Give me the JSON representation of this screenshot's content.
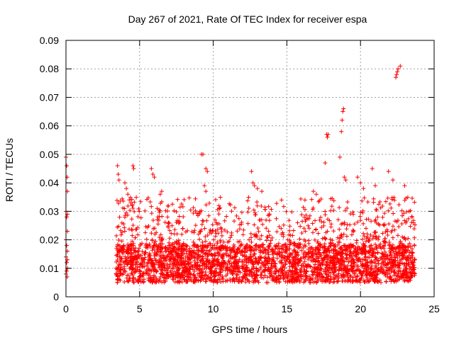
{
  "chart_data": {
    "type": "scatter",
    "title": "Day 267 of 2021, Rate Of TEC Index for receiver espa",
    "xlabel": "GPS time / hours",
    "ylabel": "ROTI / TECUs",
    "xlim": [
      0,
      25
    ],
    "ylim": [
      0,
      0.09
    ],
    "x_ticks": [
      "0",
      "5",
      "10",
      "15",
      "20",
      "25"
    ],
    "y_ticks": [
      "0",
      "0.01",
      "0.02",
      "0.03",
      "0.04",
      "0.05",
      "0.06",
      "0.07",
      "0.08",
      "0.09"
    ],
    "grid": true,
    "marker": "plus",
    "series": [
      {
        "name": "ROTI",
        "color": "#ff0000",
        "points": [
          [
            0.0,
            0.049
          ],
          [
            0.05,
            0.046
          ],
          [
            0.08,
            0.042
          ],
          [
            0.1,
            0.037
          ],
          [
            0.0,
            0.03
          ],
          [
            0.1,
            0.029
          ],
          [
            0.05,
            0.028
          ],
          [
            0.1,
            0.023
          ],
          [
            0.0,
            0.02
          ],
          [
            0.05,
            0.018
          ],
          [
            0.1,
            0.016
          ],
          [
            0.0,
            0.014
          ],
          [
            0.05,
            0.012
          ],
          [
            0.1,
            0.01
          ],
          [
            0.0,
            0.008
          ],
          [
            0.08,
            0.007
          ],
          [
            0.1,
            0.013
          ],
          [
            0.05,
            0.009
          ],
          [
            3.5,
            0.046
          ],
          [
            3.55,
            0.043
          ],
          [
            3.6,
            0.041
          ],
          [
            4.0,
            0.04
          ],
          [
            4.1,
            0.038
          ],
          [
            4.2,
            0.036
          ],
          [
            4.3,
            0.034
          ],
          [
            4.4,
            0.033
          ],
          [
            4.5,
            0.032
          ],
          [
            4.55,
            0.046
          ],
          [
            4.6,
            0.045
          ],
          [
            5.8,
            0.045
          ],
          [
            5.9,
            0.043
          ],
          [
            6.0,
            0.042
          ],
          [
            6.4,
            0.036
          ],
          [
            6.5,
            0.037
          ],
          [
            9.2,
            0.05
          ],
          [
            9.3,
            0.05
          ],
          [
            9.5,
            0.045
          ],
          [
            9.6,
            0.044
          ],
          [
            9.4,
            0.039
          ],
          [
            9.5,
            0.037
          ],
          [
            12.6,
            0.044
          ],
          [
            12.7,
            0.04
          ],
          [
            12.8,
            0.039
          ],
          [
            13.0,
            0.038
          ],
          [
            13.3,
            0.037
          ],
          [
            16.8,
            0.037
          ],
          [
            17.0,
            0.036
          ],
          [
            17.6,
            0.047
          ],
          [
            17.7,
            0.057
          ],
          [
            17.8,
            0.057
          ],
          [
            17.75,
            0.056
          ],
          [
            18.6,
            0.049
          ],
          [
            18.7,
            0.058
          ],
          [
            18.75,
            0.062
          ],
          [
            18.8,
            0.065
          ],
          [
            18.85,
            0.066
          ],
          [
            18.9,
            0.042
          ],
          [
            19.0,
            0.041
          ],
          [
            19.8,
            0.042
          ],
          [
            20.0,
            0.04
          ],
          [
            20.2,
            0.038
          ],
          [
            20.8,
            0.045
          ],
          [
            21.0,
            0.039
          ],
          [
            21.9,
            0.044
          ],
          [
            22.2,
            0.041
          ],
          [
            22.4,
            0.077
          ],
          [
            22.45,
            0.078
          ],
          [
            22.5,
            0.079
          ],
          [
            22.55,
            0.08
          ],
          [
            22.7,
            0.081
          ],
          [
            23.0,
            0.039
          ],
          [
            23.3,
            0.03
          ],
          [
            23.5,
            0.028
          ],
          [
            23.6,
            0.026
          ]
        ],
        "dense_band": {
          "x_range": [
            3.4,
            23.7
          ],
          "base_range": [
            0.005,
            0.018
          ],
          "peak_range": [
            0.018,
            0.035
          ]
        }
      }
    ]
  }
}
